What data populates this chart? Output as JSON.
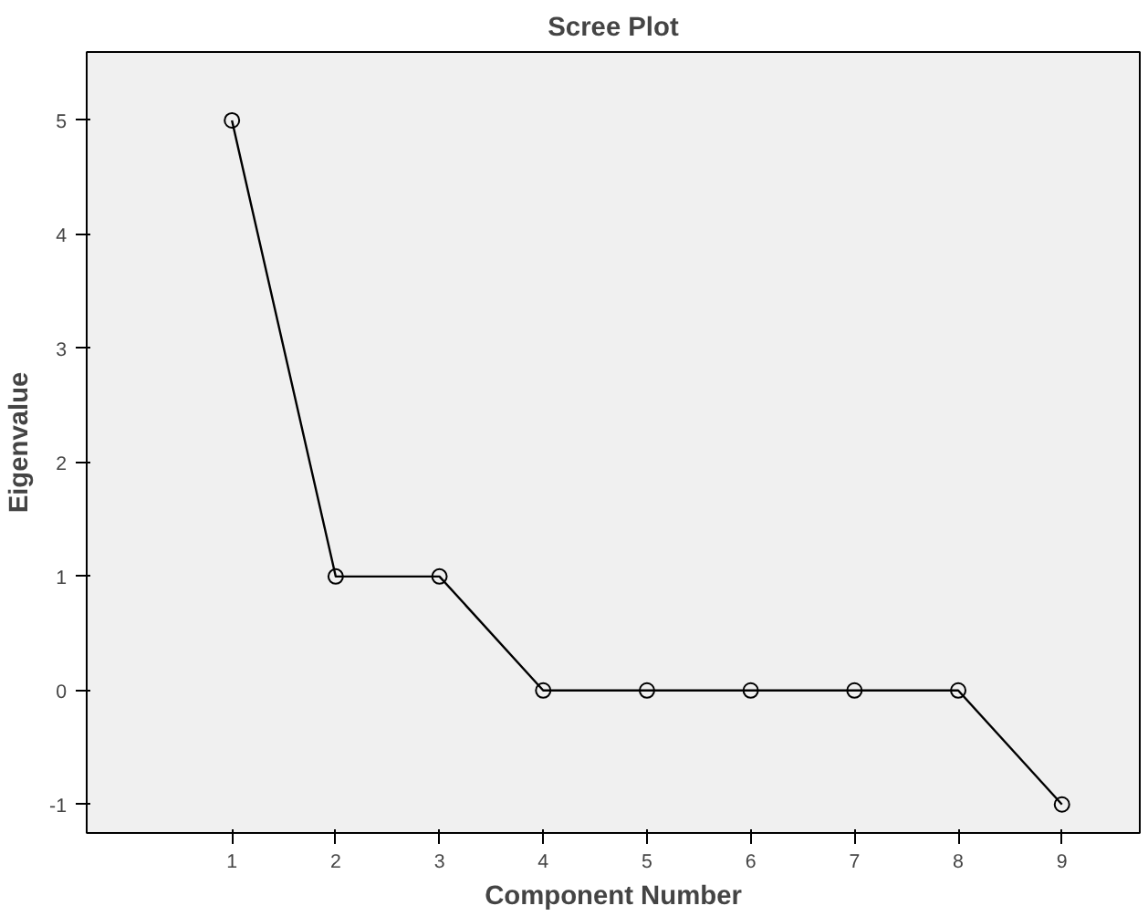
{
  "chart_data": {
    "type": "line",
    "title": "Scree Plot",
    "xlabel": "Component Number",
    "ylabel": "Eigenvalue",
    "x": [
      1,
      2,
      3,
      4,
      5,
      6,
      7,
      8,
      9
    ],
    "series": [
      {
        "color": "#000000",
        "values": [
          5,
          1,
          1,
          0,
          0,
          0,
          0,
          0,
          -1
        ]
      }
    ],
    "xlim": [
      -0.4,
      9.75
    ],
    "xticks": [
      1,
      2,
      3,
      4,
      5,
      6,
      7,
      8,
      9
    ],
    "ylim": [
      -1.25,
      5.6
    ],
    "yticks": [
      -1,
      0,
      1,
      2,
      3,
      4,
      5
    ],
    "marker": "circle",
    "line_style": "solid"
  }
}
